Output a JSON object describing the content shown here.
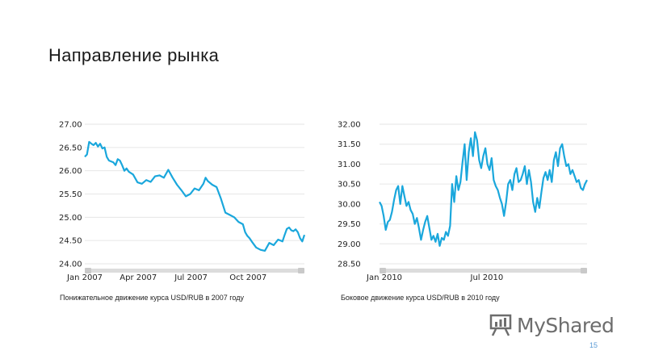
{
  "slide": {
    "title": "Направление рынка",
    "page_number": "15"
  },
  "brand": {
    "name": "MyShared",
    "icon": "presentation-board-icon",
    "color": "#6d6d6d"
  },
  "colors": {
    "line": "#1aa7dc",
    "grid": "#e6e6e6",
    "scrollbar": "#dcdcdc",
    "page_number": "#5b9bd5"
  },
  "chart_data": [
    {
      "type": "line",
      "caption": "Понижательное движение курса  USD/RUB в 2007 году",
      "xlabels": [
        "Jan 2007",
        "Apr 2007",
        "Jul 2007",
        "Oct 2007"
      ],
      "yticks": [
        "27.00",
        "26.50",
        "26.00",
        "25.50",
        "25.00",
        "24.50",
        "24.00"
      ],
      "ylim": [
        24.0,
        27.0
      ],
      "xlim": [
        0,
        100
      ],
      "xtick_positions": [
        0,
        24,
        49,
        74
      ],
      "grid": true,
      "series": [
        {
          "x": [
            0,
            1,
            2,
            3,
            4,
            5,
            6,
            7,
            8,
            9,
            10,
            11,
            12,
            13,
            14,
            15,
            16,
            17,
            18,
            19,
            20,
            22,
            24,
            26,
            28,
            30,
            32,
            34,
            36,
            38,
            40,
            42,
            44,
            46,
            48,
            50,
            52,
            54,
            55,
            56,
            58,
            60,
            62,
            64,
            66,
            68,
            70,
            72,
            73,
            74,
            75,
            76,
            78,
            80,
            82,
            84,
            86,
            88,
            90,
            91,
            92,
            93,
            94,
            95,
            96,
            97,
            98,
            99,
            100
          ],
          "y": [
            26.3,
            26.35,
            26.62,
            26.58,
            26.55,
            26.6,
            26.52,
            26.58,
            26.48,
            26.5,
            26.3,
            26.22,
            26.2,
            26.18,
            26.12,
            26.25,
            26.22,
            26.12,
            26.0,
            26.05,
            25.98,
            25.92,
            25.75,
            25.72,
            25.8,
            25.76,
            25.88,
            25.9,
            25.85,
            26.02,
            25.85,
            25.7,
            25.58,
            25.45,
            25.5,
            25.62,
            25.58,
            25.72,
            25.85,
            25.78,
            25.7,
            25.65,
            25.4,
            25.1,
            25.05,
            25.0,
            24.9,
            24.85,
            24.68,
            24.6,
            24.55,
            24.48,
            24.35,
            24.3,
            24.28,
            24.45,
            24.4,
            24.52,
            24.48,
            24.62,
            24.75,
            24.78,
            24.72,
            24.7,
            24.74,
            24.68,
            24.55,
            24.48,
            24.62
          ]
        }
      ]
    },
    {
      "type": "line",
      "caption": "Боковое движение курса USD/RUB в 2010 году",
      "xlabels": [
        "Jan 2010",
        "Jul 2010"
      ],
      "yticks": [
        "32.00",
        "31.50",
        "31.00",
        "30.50",
        "30.00",
        "29.50",
        "29.00",
        "28.50"
      ],
      "ylim": [
        28.5,
        32.0
      ],
      "xlim": [
        0,
        100
      ],
      "xtick_positions": [
        0,
        50
      ],
      "grid": true,
      "series": [
        {
          "x": [
            0,
            1,
            2,
            3,
            4,
            5,
            6,
            7,
            8,
            9,
            10,
            11,
            12,
            13,
            14,
            15,
            16,
            17,
            18,
            19,
            20,
            21,
            22,
            23,
            24,
            25,
            26,
            27,
            28,
            29,
            30,
            31,
            32,
            33,
            34,
            35,
            36,
            37,
            38,
            39,
            40,
            41,
            42,
            43,
            44,
            45,
            46,
            47,
            48,
            49,
            50,
            51,
            52,
            53,
            54,
            55,
            56,
            57,
            58,
            59,
            60,
            61,
            62,
            63,
            64,
            65,
            66,
            67,
            68,
            69,
            70,
            71,
            72,
            73,
            74,
            75,
            76,
            77,
            78,
            79,
            80,
            81,
            82,
            83,
            84,
            85,
            86,
            87,
            88,
            89,
            90,
            91,
            92,
            93,
            94,
            95,
            96,
            97,
            98,
            99,
            100
          ],
          "y": [
            30.05,
            29.95,
            29.7,
            29.35,
            29.55,
            29.6,
            29.8,
            30.1,
            30.35,
            30.45,
            30.0,
            30.45,
            30.2,
            29.95,
            30.05,
            29.85,
            29.75,
            29.5,
            29.65,
            29.4,
            29.1,
            29.35,
            29.55,
            29.7,
            29.4,
            29.1,
            29.2,
            29.05,
            29.25,
            28.95,
            29.15,
            29.1,
            29.3,
            29.2,
            29.45,
            30.5,
            30.05,
            30.7,
            30.35,
            30.55,
            31.05,
            31.5,
            30.6,
            31.3,
            31.65,
            31.2,
            31.8,
            31.6,
            31.1,
            30.9,
            31.2,
            31.4,
            31.0,
            30.85,
            31.15,
            30.6,
            30.45,
            30.35,
            30.15,
            30.0,
            29.7,
            30.05,
            30.5,
            30.6,
            30.35,
            30.75,
            30.9,
            30.55,
            30.6,
            30.75,
            30.95,
            30.5,
            30.85,
            30.55,
            30.05,
            29.8,
            30.15,
            29.9,
            30.3,
            30.65,
            30.8,
            30.6,
            30.85,
            30.55,
            31.1,
            31.3,
            30.95,
            31.4,
            31.5,
            31.2,
            30.95,
            31.0,
            30.75,
            30.85,
            30.7,
            30.55,
            30.6,
            30.4,
            30.35,
            30.5,
            30.6
          ]
        }
      ]
    }
  ]
}
